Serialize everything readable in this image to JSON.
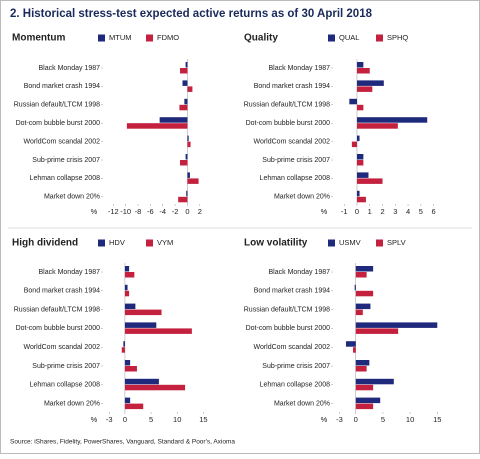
{
  "title": "2. Historical stress-test expected active returns as of 30 April 2018",
  "source": "Source: iShares, Fidelity, PowerShares, Vanguard, Standard & Poor's, Axioma",
  "chart_data": [
    {
      "type": "bar",
      "orientation": "horizontal",
      "title": "Momentum",
      "xlabel": "%",
      "categories": [
        "Black Monday 1987",
        "Bond market crash 1994",
        "Russian default/LTCM 1998",
        "Dot-com bubble burst 2000",
        "WorldCom scandal 2002",
        "Sub-prime crisis 2007",
        "Lehman collapse 2008",
        "Market down 20%"
      ],
      "series": [
        {
          "name": "MTUM",
          "color": "#1f2a7c",
          "values": [
            -0.3,
            -0.8,
            -0.5,
            -4.5,
            0.2,
            -0.3,
            0.4,
            -0.2
          ]
        },
        {
          "name": "FDMO",
          "color": "#c4213f",
          "values": [
            -1.2,
            0.8,
            -1.3,
            -9.8,
            0.5,
            -1.2,
            1.8,
            -1.5
          ]
        }
      ],
      "xlim": [
        -13.5,
        3
      ],
      "xticks": [
        -12,
        -10,
        -8,
        -6,
        -4,
        -2,
        0,
        2
      ]
    },
    {
      "type": "bar",
      "orientation": "horizontal",
      "title": "Quality",
      "xlabel": "%",
      "categories": [
        "Black Monday 1987",
        "Bond market crash 1994",
        "Russian default/LTCM 1998",
        "Dot-com bubble burst 2000",
        "WorldCom scandal 2002",
        "Sub-prime crisis 2007",
        "Lehman collapse 2008",
        "Market down 20%"
      ],
      "series": [
        {
          "name": "QUAL",
          "color": "#1f2a7c",
          "values": [
            0.5,
            2.1,
            -0.6,
            5.5,
            0.2,
            0.5,
            0.9,
            0.2
          ]
        },
        {
          "name": "SPHQ",
          "color": "#c4213f",
          "values": [
            1.0,
            1.2,
            0.5,
            3.2,
            -0.4,
            0.5,
            2.0,
            0.7
          ]
        }
      ],
      "xlim": [
        -1.8,
        6.5
      ],
      "xticks": [
        -1,
        0,
        1,
        2,
        3,
        4,
        5,
        6
      ]
    },
    {
      "type": "bar",
      "orientation": "horizontal",
      "title": "High dividend",
      "xlabel": "%",
      "categories": [
        "Black Monday 1987",
        "Bond market crash 1994",
        "Russian default/LTCM 1998",
        "Dot-com bubble burst 2000",
        "WorldCom scandal 2002",
        "Sub-prime crisis 2007",
        "Lehman collapse 2008",
        "Market down 20%"
      ],
      "series": [
        {
          "name": "HDV",
          "color": "#1f2a7c",
          "values": [
            0.8,
            0.5,
            2,
            6,
            -0.3,
            1,
            6.5,
            1
          ]
        },
        {
          "name": "VYM",
          "color": "#c4213f",
          "values": [
            1.8,
            0.8,
            7,
            12.8,
            -0.6,
            2.3,
            11.5,
            3.5
          ]
        }
      ],
      "xlim": [
        -4,
        15.5
      ],
      "xticks": [
        -3,
        0,
        5,
        10,
        15
      ]
    },
    {
      "type": "bar",
      "orientation": "horizontal",
      "title": "Low volatility",
      "xlabel": "%",
      "categories": [
        "Black Monday 1987",
        "Bond market crash 1994",
        "Russian default/LTCM 1998",
        "Dot-com bubble burst 2000",
        "WorldCom scandal 2002",
        "Sub-prime crisis 2007",
        "Lehman collapse 2008",
        "Market down 20%"
      ],
      "series": [
        {
          "name": "USMV",
          "color": "#1f2a7c",
          "values": [
            3.2,
            -0.2,
            2.7,
            15,
            -1.8,
            2.5,
            7,
            4.5
          ]
        },
        {
          "name": "SPLV",
          "color": "#c4213f",
          "values": [
            2.0,
            3.2,
            1.3,
            7.8,
            -0.5,
            2,
            3.2,
            3.2
          ]
        }
      ],
      "xlim": [
        -4,
        15.5
      ],
      "xticks": [
        -3,
        0,
        5,
        10,
        15
      ]
    }
  ]
}
